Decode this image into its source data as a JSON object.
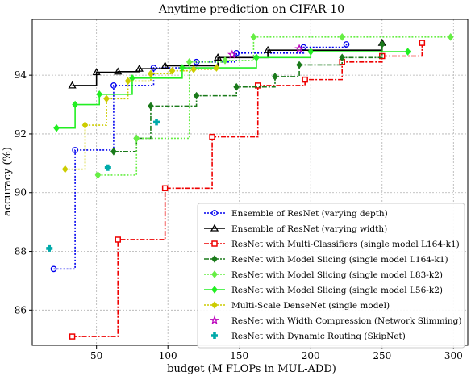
{
  "chart_data": {
    "type": "line",
    "step": "post",
    "title": "Anytime prediction on CIFAR-10",
    "xlabel": "budget (M FLOPs in MUL-ADD)",
    "ylabel": "accuracy (%)",
    "xlim": [
      5,
      310
    ],
    "ylim": [
      84.8,
      95.9
    ],
    "xticks": [
      50,
      100,
      150,
      200,
      250,
      300
    ],
    "yticks": [
      86,
      88,
      90,
      92,
      94
    ],
    "grid": true,
    "legend_position": "lower-right",
    "series": [
      {
        "name": "Ensemble of ResNet (varying depth)",
        "color": "#0000ee",
        "dash": "2,2",
        "marker": "circle",
        "x": [
          20,
          35,
          62,
          90,
          120,
          148,
          195,
          225
        ],
        "y": [
          87.4,
          91.45,
          93.65,
          94.25,
          94.45,
          94.75,
          94.95,
          95.05
        ]
      },
      {
        "name": "Ensemble of ResNet (varying width)",
        "color": "#000000",
        "dash": "",
        "marker": "triangle",
        "x": [
          33,
          50,
          65,
          80,
          98,
          135,
          170,
          250
        ],
        "y": [
          93.65,
          94.1,
          94.12,
          94.22,
          94.32,
          94.6,
          94.85,
          95.1
        ]
      },
      {
        "name": "ResNet with Multi-Classifiers (single model L164-k1)",
        "color": "#ee0000",
        "dash": "6,2,2,2",
        "marker": "square",
        "x": [
          33,
          65,
          98,
          131,
          163,
          196,
          222,
          250,
          278
        ],
        "y": [
          85.1,
          88.4,
          90.15,
          91.9,
          93.65,
          93.85,
          94.45,
          94.65,
          95.1
        ]
      },
      {
        "name": "ResNet with Model Slicing (single model L164-k1)",
        "color": "#1a7a1a",
        "dash": "6,2,2,2",
        "marker": "diamond",
        "x": [
          62,
          78,
          88,
          120,
          148,
          175,
          192,
          222,
          250
        ],
        "y": [
          91.4,
          91.85,
          92.95,
          93.3,
          93.6,
          93.95,
          94.35,
          94.6,
          95.05
        ]
      },
      {
        "name": "ResNet with Model Slicing (single model L83-k2)",
        "color": "#66ee44",
        "dash": "2,2",
        "marker": "diamond",
        "x": [
          51,
          78,
          115,
          140,
          160,
          222,
          298
        ],
        "y": [
          90.6,
          91.85,
          94.45,
          94.5,
          95.3,
          95.3,
          95.3
        ]
      },
      {
        "name": "ResNet with Model Slicing (single model L56-k2)",
        "color": "#22ee22",
        "dash": "",
        "marker": "diamond",
        "x": [
          22,
          35,
          52,
          75,
          110,
          162,
          200,
          268
        ],
        "y": [
          92.2,
          93.0,
          93.35,
          93.9,
          94.25,
          94.6,
          94.8,
          94.8
        ]
      },
      {
        "name": "Multi-Scale DenseNet (single model)",
        "color": "#cccc00",
        "dash": "2,2",
        "marker": "diamond",
        "x": [
          28,
          42,
          57,
          72,
          88,
          103,
          118,
          134
        ],
        "y": [
          90.8,
          92.3,
          93.2,
          93.8,
          94.05,
          94.15,
          94.2,
          94.25
        ]
      },
      {
        "name": "ResNet with Width Compression (Network Slimming)",
        "color": "#bb00bb",
        "marker": "star",
        "scatter": true,
        "x": [
          145,
          192
        ],
        "y": [
          94.7,
          94.9
        ]
      },
      {
        "name": "ResNet with Dynamic Routing (SkipNet)",
        "color": "#00aaaa",
        "marker": "plus",
        "scatter": true,
        "x": [
          17,
          58,
          92
        ],
        "y": [
          88.1,
          90.85,
          92.4
        ]
      }
    ]
  }
}
